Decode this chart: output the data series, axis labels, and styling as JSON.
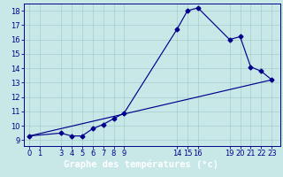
{
  "line1_x": [
    0,
    3,
    4,
    5,
    6,
    7,
    8,
    9,
    14,
    15,
    16,
    19,
    20,
    21,
    22,
    23
  ],
  "line1_y": [
    9.3,
    9.5,
    9.3,
    9.3,
    9.8,
    10.1,
    10.5,
    10.9,
    16.7,
    18.0,
    18.2,
    16.0,
    16.2,
    14.1,
    13.8,
    13.2
  ],
  "line2_x": [
    0,
    23
  ],
  "line2_y": [
    9.3,
    13.2
  ],
  "line_color": "#00008b",
  "marker": "D",
  "marker_size": 2.5,
  "bg_color": "#c8e8e8",
  "grid_color": "#a8cccc",
  "xlim": [
    -0.5,
    23.8
  ],
  "ylim": [
    8.6,
    18.5
  ],
  "xticks": [
    0,
    1,
    3,
    4,
    5,
    6,
    7,
    8,
    9,
    14,
    15,
    16,
    19,
    20,
    21,
    22,
    23
  ],
  "yticks": [
    9,
    10,
    11,
    12,
    13,
    14,
    15,
    16,
    17,
    18
  ],
  "xlabel": "Graphe des températures (°c)",
  "tick_fontsize": 6,
  "xlabel_fontsize": 7.5,
  "xlabel_bg": "#00008b",
  "xlabel_color": "white"
}
